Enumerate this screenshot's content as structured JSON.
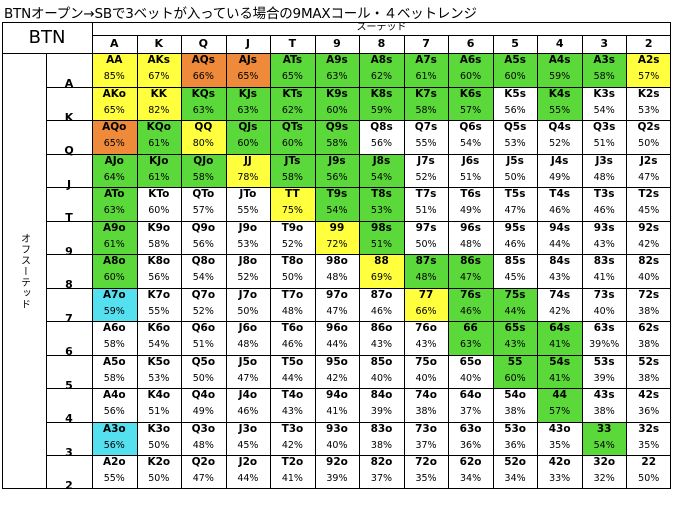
{
  "title": "BTNオープン→SBで3ベットが入っている場合の9MAXコール・４ベットレンジ",
  "corner_label": "BTN",
  "suited_label": "スーテッド",
  "offsuit_label": "オフスーテッド",
  "ranks": [
    "A",
    "K",
    "Q",
    "J",
    "T",
    "9",
    "8",
    "7",
    "6",
    "5",
    "4",
    "3",
    "2"
  ],
  "colors": {
    "green": "#5cd93a",
    "yellow": "#ffff3d",
    "orange": "#ee8a3a",
    "cyan": "#55e0f0",
    "white": "#ffffff"
  },
  "rows": [
    {
      "hands": [
        "AA",
        "AKs",
        "AQs",
        "AJs",
        "ATs",
        "A9s",
        "A8s",
        "A7s",
        "A6s",
        "A5s",
        "A4s",
        "A3s",
        "A2s"
      ],
      "pcts": [
        "85%",
        "67%",
        "66%",
        "65%",
        "65%",
        "63%",
        "62%",
        "61%",
        "60%",
        "60%",
        "59%",
        "58%",
        "57%"
      ],
      "colors": [
        "yellow",
        "yellow",
        "orange",
        "orange",
        "green",
        "green",
        "green",
        "green",
        "green",
        "green",
        "green",
        "green",
        "yellow"
      ]
    },
    {
      "hands": [
        "AKo",
        "KK",
        "KQs",
        "KJs",
        "KTs",
        "K9s",
        "K8s",
        "K7s",
        "K6s",
        "K5s",
        "K4s",
        "K3s",
        "K2s"
      ],
      "pcts": [
        "65%",
        "82%",
        "63%",
        "63%",
        "62%",
        "60%",
        "59%",
        "58%",
        "57%",
        "56%",
        "55%",
        "54%",
        "53%"
      ],
      "colors": [
        "yellow",
        "yellow",
        "green",
        "green",
        "green",
        "green",
        "green",
        "green",
        "green",
        "white",
        "green",
        "white",
        "white"
      ]
    },
    {
      "hands": [
        "AQo",
        "KQo",
        "QQ",
        "QJs",
        "QTs",
        "Q9s",
        "Q8s",
        "Q7s",
        "Q6s",
        "Q5s",
        "Q4s",
        "Q3s",
        "Q2s"
      ],
      "pcts": [
        "65%",
        "61%",
        "80%",
        "60%",
        "60%",
        "58%",
        "56%",
        "55%",
        "54%",
        "53%",
        "52%",
        "51%",
        "50%"
      ],
      "colors": [
        "orange",
        "green",
        "yellow",
        "green",
        "green",
        "green",
        "white",
        "white",
        "white",
        "white",
        "white",
        "white",
        "white"
      ]
    },
    {
      "hands": [
        "AJo",
        "KJo",
        "QJo",
        "JJ",
        "JTs",
        "J9s",
        "J8s",
        "J7s",
        "J6s",
        "J5s",
        "J4s",
        "J3s",
        "J2s"
      ],
      "pcts": [
        "64%",
        "61%",
        "58%",
        "78%",
        "58%",
        "56%",
        "54%",
        "52%",
        "51%",
        "50%",
        "49%",
        "48%",
        "47%"
      ],
      "colors": [
        "green",
        "green",
        "green",
        "yellow",
        "green",
        "green",
        "green",
        "white",
        "white",
        "white",
        "white",
        "white",
        "white"
      ]
    },
    {
      "hands": [
        "ATo",
        "KTo",
        "QTo",
        "JTo",
        "TT",
        "T9s",
        "T8s",
        "T7s",
        "T6s",
        "T5s",
        "T4s",
        "T3s",
        "T2s"
      ],
      "pcts": [
        "63%",
        "60%",
        "57%",
        "55%",
        "75%",
        "54%",
        "53%",
        "51%",
        "49%",
        "47%",
        "46%",
        "46%",
        "45%"
      ],
      "colors": [
        "green",
        "white",
        "white",
        "white",
        "yellow",
        "green",
        "green",
        "white",
        "white",
        "white",
        "white",
        "white",
        "white"
      ]
    },
    {
      "hands": [
        "A9o",
        "K9o",
        "Q9o",
        "J9o",
        "T9o",
        "99",
        "98s",
        "97s",
        "96s",
        "95s",
        "94s",
        "93s",
        "92s"
      ],
      "pcts": [
        "61%",
        "58%",
        "56%",
        "53%",
        "52%",
        "72%",
        "51%",
        "50%",
        "48%",
        "46%",
        "44%",
        "43%",
        "42%"
      ],
      "colors": [
        "green",
        "white",
        "white",
        "white",
        "white",
        "yellow",
        "green",
        "white",
        "white",
        "white",
        "white",
        "white",
        "white"
      ]
    },
    {
      "hands": [
        "A8o",
        "K8o",
        "Q8o",
        "J8o",
        "T8o",
        "98o",
        "88",
        "87s",
        "86s",
        "85s",
        "84s",
        "83s",
        "82s"
      ],
      "pcts": [
        "60%",
        "56%",
        "54%",
        "52%",
        "50%",
        "48%",
        "69%",
        "48%",
        "47%",
        "45%",
        "43%",
        "41%",
        "40%"
      ],
      "colors": [
        "green",
        "white",
        "white",
        "white",
        "white",
        "white",
        "yellow",
        "green",
        "green",
        "white",
        "white",
        "white",
        "white"
      ]
    },
    {
      "hands": [
        "A7o",
        "K7o",
        "Q7o",
        "J7o",
        "T7o",
        "97o",
        "87o",
        "77",
        "76s",
        "75s",
        "74s",
        "73s",
        "72s"
      ],
      "pcts": [
        "59%",
        "55%",
        "52%",
        "50%",
        "48%",
        "47%",
        "46%",
        "66%",
        "46%",
        "44%",
        "42%",
        "40%",
        "38%"
      ],
      "colors": [
        "cyan",
        "white",
        "white",
        "white",
        "white",
        "white",
        "white",
        "yellow",
        "green",
        "green",
        "white",
        "white",
        "white"
      ]
    },
    {
      "hands": [
        "A6o",
        "K6o",
        "Q6o",
        "J6o",
        "T6o",
        "96o",
        "86o",
        "76o",
        "66",
        "65s",
        "64s",
        "63s",
        "62s"
      ],
      "pcts": [
        "58%",
        "54%",
        "51%",
        "48%",
        "46%",
        "44%",
        "43%",
        "43%",
        "63%",
        "43%",
        "41%",
        "39%%",
        "38%"
      ],
      "colors": [
        "white",
        "white",
        "white",
        "white",
        "white",
        "white",
        "white",
        "white",
        "green",
        "green",
        "green",
        "white",
        "white"
      ]
    },
    {
      "hands": [
        "A5o",
        "K5o",
        "Q5o",
        "J5o",
        "T5o",
        "95o",
        "85o",
        "75o",
        "65o",
        "55",
        "54s",
        "53s",
        "52s"
      ],
      "pcts": [
        "58%",
        "53%",
        "50%",
        "47%",
        "44%",
        "42%",
        "40%",
        "40%",
        "40%",
        "60%",
        "41%",
        "39%",
        "38%"
      ],
      "colors": [
        "white",
        "white",
        "white",
        "white",
        "white",
        "white",
        "white",
        "white",
        "white",
        "green",
        "green",
        "white",
        "white"
      ]
    },
    {
      "hands": [
        "A4o",
        "K4o",
        "Q4o",
        "J4o",
        "T4o",
        "94o",
        "84o",
        "74o",
        "64o",
        "54o",
        "44",
        "43s",
        "42s"
      ],
      "pcts": [
        "56%",
        "51%",
        "49%",
        "46%",
        "43%",
        "41%",
        "39%",
        "38%",
        "37%",
        "38%",
        "57%",
        "38%",
        "36%"
      ],
      "colors": [
        "white",
        "white",
        "white",
        "white",
        "white",
        "white",
        "white",
        "white",
        "white",
        "white",
        "green",
        "white",
        "white"
      ]
    },
    {
      "hands": [
        "A3o",
        "K3o",
        "Q3o",
        "J3o",
        "T3o",
        "93o",
        "83o",
        "73o",
        "63o",
        "53o",
        "43o",
        "33",
        "32s"
      ],
      "pcts": [
        "56%",
        "50%",
        "48%",
        "45%",
        "42%",
        "40%",
        "38%",
        "37%",
        "36%",
        "36%",
        "35%",
        "54%",
        "35%"
      ],
      "colors": [
        "cyan",
        "white",
        "white",
        "white",
        "white",
        "white",
        "white",
        "white",
        "white",
        "white",
        "white",
        "green",
        "white"
      ]
    },
    {
      "hands": [
        "A2o",
        "K2o",
        "Q2o",
        "J2o",
        "T2o",
        "92o",
        "82o",
        "72o",
        "62o",
        "52o",
        "42o",
        "32o",
        "22"
      ],
      "pcts": [
        "55%",
        "50%",
        "47%",
        "44%",
        "41%",
        "39%",
        "37%",
        "35%",
        "34%",
        "34%",
        "33%",
        "32%",
        "50%"
      ],
      "colors": [
        "white",
        "white",
        "white",
        "white",
        "white",
        "white",
        "white",
        "white",
        "white",
        "white",
        "white",
        "white",
        "white"
      ]
    }
  ]
}
